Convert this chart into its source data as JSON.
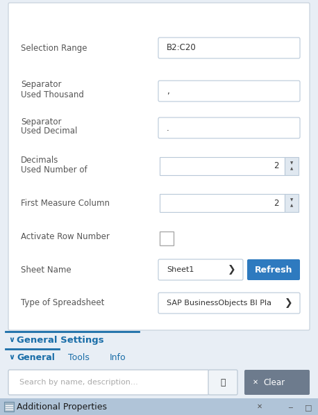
{
  "title_bar_text": "Additional Properties",
  "title_bar_bg": "#b0c4d8",
  "title_bar_fg": "#1a1a1a",
  "window_bg": "#e8eef5",
  "body_bg": "#ffffff",
  "search_placeholder": "Search by name, description...",
  "search_bg": "#ffffff",
  "clear_btn_text": "Clear",
  "clear_btn_bg": "#6d7b8d",
  "tabs": [
    "General",
    "Tools",
    "Info"
  ],
  "active_tab_color": "#1a6ea8",
  "tab_color": "#1a6ea8",
  "tab_underline_color": "#1a6ea8",
  "section_title": "General Settings",
  "section_title_color": "#1a6ea8",
  "panel_bg": "#ffffff",
  "panel_border": "#ccd6e0",
  "refresh_btn_text": "Refresh",
  "refresh_btn_bg": "#2e7abf",
  "refresh_btn_fg": "#ffffff",
  "label_color": "#555555",
  "field_border": "#b8c8d8",
  "field_bg": "#ffffff",
  "spinner_bg": "#e0e8f0",
  "text_color": "#333333",
  "chevron_color": "#333333"
}
